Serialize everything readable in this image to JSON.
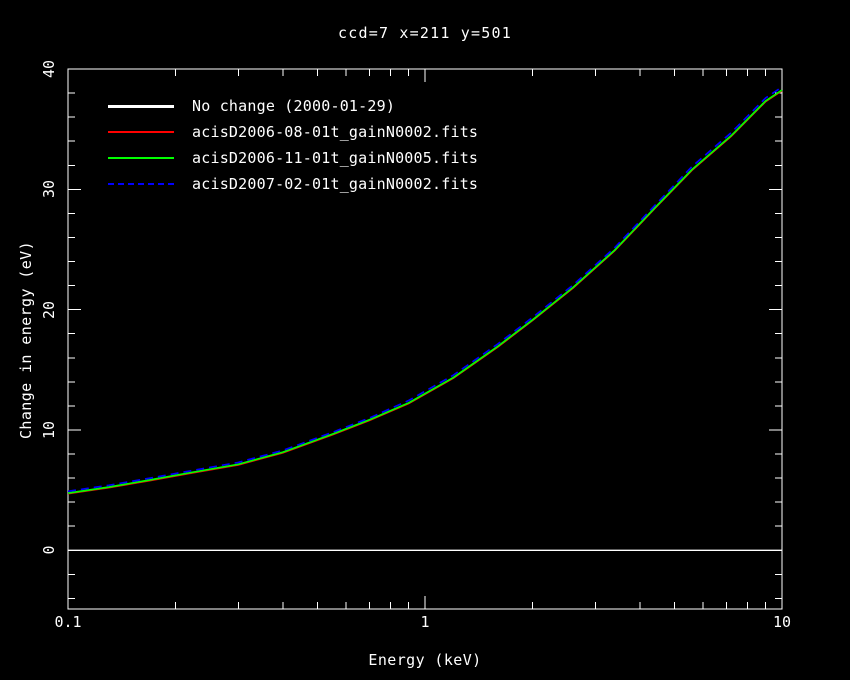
{
  "window": {
    "background": "#000000",
    "foreground": "#ffffff"
  },
  "chart_data": {
    "type": "line",
    "title": "ccd=7 x=211 y=501",
    "xlabel": "Energy (keV)",
    "ylabel": "Change in energy (eV)",
    "xscale": "log",
    "yscale": "linear",
    "xlim": [
      0.1,
      10
    ],
    "ylim": [
      -4.88,
      40
    ],
    "grid": false,
    "legend_position": "upper-left-inside",
    "x_major_ticks": {
      "values": [
        0.1,
        1,
        10
      ],
      "labels": [
        "0.1",
        "1",
        "10"
      ]
    },
    "x_minor_ticks": [
      0.2,
      0.3,
      0.4,
      0.5,
      0.6,
      0.7,
      0.8,
      0.9,
      2,
      3,
      4,
      5,
      6,
      7,
      8,
      9
    ],
    "y_major_ticks": {
      "values": [
        0,
        10,
        20,
        30,
        40
      ],
      "labels": [
        "0",
        "10",
        "20",
        "30",
        "40"
      ]
    },
    "y_minor_step": 2,
    "x": [
      0.1,
      0.13,
      0.17,
      0.22,
      0.3,
      0.4,
      0.55,
      0.7,
      0.9,
      1.2,
      1.6,
      2.0,
      2.6,
      3.4,
      4.4,
      5.6,
      7.2,
      9.0,
      10.0
    ],
    "series": [
      {
        "name": "No change (2000-01-29)",
        "color": "#ffffff",
        "style": "solid",
        "values": [
          0,
          0,
          0,
          0,
          0,
          0,
          0,
          0,
          0,
          0,
          0,
          0,
          0,
          0,
          0,
          0,
          0,
          0,
          0
        ]
      },
      {
        "name": "acisD2006-08-01t_gainN0002.fits",
        "color": "#ff0000",
        "style": "solid",
        "values": [
          4.7,
          5.2,
          5.8,
          6.4,
          7.1,
          8.1,
          9.6,
          10.8,
          12.2,
          14.3,
          16.9,
          19.1,
          21.8,
          24.9,
          28.4,
          31.6,
          34.4,
          37.3,
          38.2
        ]
      },
      {
        "name": "acisD2006-11-01t_gainN0005.fits",
        "color": "#00ff00",
        "style": "solid",
        "values": [
          4.75,
          5.25,
          5.85,
          6.45,
          7.15,
          8.15,
          9.65,
          10.85,
          12.25,
          14.35,
          16.95,
          19.15,
          21.85,
          24.95,
          28.45,
          31.65,
          34.45,
          37.35,
          38.25
        ]
      },
      {
        "name": "acisD2007-02-01t_gainN0002.fits",
        "color": "#0000ff",
        "style": "dashed",
        "values": [
          4.9,
          5.4,
          6.0,
          6.6,
          7.3,
          8.3,
          9.8,
          11.0,
          12.45,
          14.55,
          17.15,
          19.35,
          22.05,
          25.15,
          28.65,
          31.9,
          34.7,
          37.6,
          38.5
        ]
      }
    ]
  }
}
